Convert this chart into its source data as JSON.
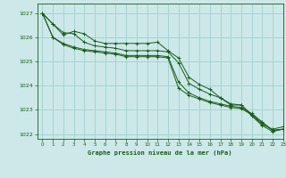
{
  "background_color": "#cce8e8",
  "grid_color": "#99cccc",
  "line_color": "#1a5c1a",
  "title": "Graphe pression niveau de la mer (hPa)",
  "xlim": [
    -0.5,
    23
  ],
  "ylim": [
    1021.8,
    1027.4
  ],
  "yticks": [
    1022,
    1023,
    1024,
    1025,
    1026,
    1027
  ],
  "xticks": [
    0,
    1,
    2,
    3,
    4,
    5,
    6,
    7,
    8,
    9,
    10,
    11,
    12,
    13,
    14,
    15,
    16,
    17,
    18,
    19,
    20,
    21,
    22,
    23
  ],
  "series": [
    [
      1027.0,
      1026.55,
      1026.1,
      1026.25,
      1026.15,
      1025.85,
      1025.75,
      1025.75,
      1025.75,
      1025.75,
      1025.75,
      1025.8,
      1025.45,
      1025.15,
      1024.35,
      1024.05,
      1023.85,
      1023.5,
      1023.25,
      1023.2,
      1022.8,
      1022.4,
      1022.2,
      1022.3
    ],
    [
      1027.0,
      1026.0,
      1025.75,
      1025.6,
      1025.5,
      1025.45,
      1025.4,
      1025.35,
      1025.25,
      1025.25,
      1025.25,
      1025.25,
      1025.2,
      1024.15,
      1023.7,
      1023.5,
      1023.35,
      1023.25,
      1023.15,
      1023.1,
      1022.85,
      1022.5,
      1022.15,
      1022.2
    ],
    [
      1027.0,
      1026.0,
      1025.7,
      1025.55,
      1025.45,
      1025.4,
      1025.35,
      1025.3,
      1025.2,
      1025.2,
      1025.2,
      1025.2,
      1025.15,
      1023.9,
      1023.6,
      1023.45,
      1023.3,
      1023.2,
      1023.1,
      1023.05,
      1022.8,
      1022.45,
      1022.15,
      1022.2
    ],
    [
      1027.0,
      1026.55,
      1026.2,
      1026.15,
      1025.8,
      1025.65,
      1025.6,
      1025.55,
      1025.45,
      1025.45,
      1025.45,
      1025.45,
      1025.4,
      1024.95,
      1024.1,
      1023.85,
      1023.65,
      1023.5,
      1023.2,
      1023.2,
      1022.75,
      1022.35,
      1022.1,
      1022.2
    ]
  ]
}
